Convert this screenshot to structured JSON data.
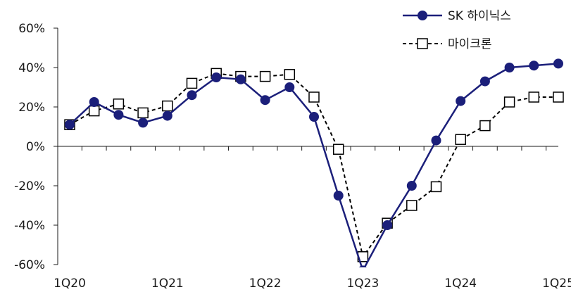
{
  "chart_data": {
    "type": "line",
    "x": [
      "1Q20",
      "2Q20",
      "3Q20",
      "4Q20",
      "1Q21",
      "2Q21",
      "3Q21",
      "4Q21",
      "1Q22",
      "2Q22",
      "3Q22",
      "4Q22",
      "1Q23",
      "2Q23",
      "3Q23",
      "4Q23",
      "1Q24",
      "2Q24",
      "3Q24",
      "4Q24",
      "1Q25"
    ],
    "x_tick_labels": [
      "1Q20",
      "1Q21",
      "1Q22",
      "1Q23",
      "1Q24",
      "1Q25"
    ],
    "y_tick_labels": [
      "60%",
      "40%",
      "20%",
      "0%",
      "-20%",
      "-40%",
      "-60%"
    ],
    "ylim": [
      -60,
      60
    ],
    "y_unit": "%",
    "title": "",
    "xlabel": "",
    "ylabel": "",
    "grid": false,
    "legend_position": "top-right",
    "series": [
      {
        "name": "SK 하이닉스",
        "color": "#1b1f7a",
        "marker": "filled-circle",
        "line_style": "solid",
        "values": [
          11,
          22.5,
          16,
          12,
          15.5,
          26,
          35,
          34,
          23.5,
          30,
          15,
          -25,
          -63,
          -40,
          -20,
          3,
          23,
          33,
          40,
          41,
          42
        ]
      },
      {
        "name": "마이크론",
        "color": "#000000",
        "marker": "open-square",
        "line_style": "dashed",
        "values": [
          11,
          18,
          21.5,
          17,
          20.5,
          32,
          37,
          35.5,
          35.5,
          36.5,
          25,
          -1.5,
          -56,
          -39,
          -30,
          -20.5,
          3.5,
          10.5,
          22.5,
          25,
          25
        ]
      }
    ]
  }
}
